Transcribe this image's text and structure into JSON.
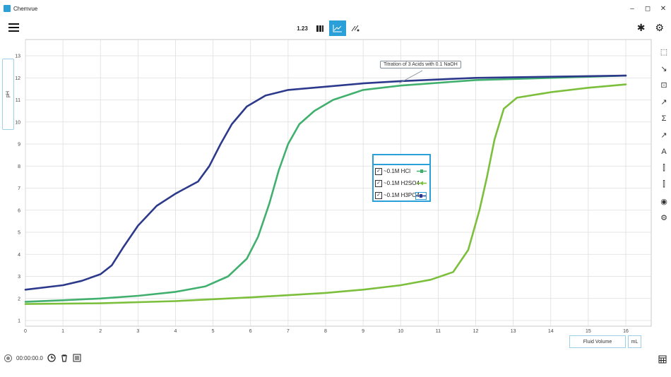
{
  "window": {
    "title": "Chemvue",
    "controls": [
      "–",
      "◻",
      "✕"
    ]
  },
  "toolbar": {
    "table_label": "1.23",
    "meter_icon": "meter-icon",
    "graph_icon": "graph-icon",
    "sensor_icon": "sensor-icon"
  },
  "top_right": {
    "bluetooth": "✱",
    "settings": "⚙"
  },
  "y_axis": {
    "label": "pH"
  },
  "x_axis": {
    "label": "Fluid Volume",
    "unit": "mL"
  },
  "annotation": "Titration of 3 Acids with 0.1 NaOH",
  "legend": [
    {
      "label": "~0.1M HCl",
      "checked": "✓"
    },
    {
      "label": "~0.1M H2SO4",
      "checked": "✓"
    },
    {
      "label": "~0.1M H3PO4",
      "checked": "✓"
    }
  ],
  "side_tools": [
    "⬚",
    "↘",
    "⊡",
    "↗",
    "Σ",
    "↗",
    "A",
    "⫿",
    "⫿",
    "◉",
    "⚙"
  ],
  "bottom": {
    "timer": "00:00:00.0"
  },
  "colors": {
    "hcl": "#41b06e",
    "h2so4": "#7cbf3c",
    "h3po4": "#2d3a8c",
    "accent": "#2a9fd8"
  },
  "chart_data": {
    "type": "line",
    "xlim": [
      0,
      16
    ],
    "ylim": [
      1,
      13
    ],
    "x_ticks": [
      0,
      1,
      2,
      3,
      4,
      5,
      6,
      7,
      8,
      9,
      10,
      11,
      12,
      13,
      14,
      15,
      16
    ],
    "y_ticks": [
      1,
      2,
      3,
      4,
      5,
      6,
      7,
      8,
      9,
      10,
      11,
      12,
      13
    ],
    "grid": true,
    "series": [
      {
        "name": "~0.1M HCl",
        "color": "#41b06e",
        "points": [
          [
            0,
            1.85
          ],
          [
            1,
            1.92
          ],
          [
            2,
            2.0
          ],
          [
            3,
            2.12
          ],
          [
            4,
            2.3
          ],
          [
            4.8,
            2.55
          ],
          [
            5.4,
            3.0
          ],
          [
            5.9,
            3.8
          ],
          [
            6.2,
            4.8
          ],
          [
            6.5,
            6.3
          ],
          [
            6.75,
            7.8
          ],
          [
            7.0,
            9.0
          ],
          [
            7.3,
            9.9
          ],
          [
            7.7,
            10.5
          ],
          [
            8.2,
            11.0
          ],
          [
            9,
            11.45
          ],
          [
            10,
            11.65
          ],
          [
            12,
            11.9
          ],
          [
            14,
            12.0
          ],
          [
            16,
            12.1
          ]
        ]
      },
      {
        "name": "~0.1M H2SO4",
        "color": "#7cbf3c",
        "points": [
          [
            0,
            1.75
          ],
          [
            2,
            1.78
          ],
          [
            4,
            1.88
          ],
          [
            6,
            2.05
          ],
          [
            8,
            2.25
          ],
          [
            9,
            2.4
          ],
          [
            10,
            2.6
          ],
          [
            10.8,
            2.85
          ],
          [
            11.4,
            3.2
          ],
          [
            11.8,
            4.2
          ],
          [
            12.1,
            6.0
          ],
          [
            12.3,
            7.5
          ],
          [
            12.5,
            9.2
          ],
          [
            12.75,
            10.6
          ],
          [
            13.1,
            11.1
          ],
          [
            14,
            11.35
          ],
          [
            15,
            11.55
          ],
          [
            16,
            11.7
          ]
        ]
      },
      {
        "name": "~0.1M H3PO4",
        "color": "#2d3a8c",
        "points": [
          [
            0,
            2.4
          ],
          [
            1,
            2.6
          ],
          [
            1.5,
            2.8
          ],
          [
            2,
            3.1
          ],
          [
            2.3,
            3.5
          ],
          [
            2.6,
            4.3
          ],
          [
            3,
            5.3
          ],
          [
            3.5,
            6.2
          ],
          [
            4,
            6.75
          ],
          [
            4.6,
            7.3
          ],
          [
            4.9,
            8.0
          ],
          [
            5.2,
            9.0
          ],
          [
            5.5,
            9.9
          ],
          [
            5.9,
            10.7
          ],
          [
            6.4,
            11.2
          ],
          [
            7,
            11.45
          ],
          [
            8,
            11.6
          ],
          [
            9,
            11.75
          ],
          [
            10,
            11.85
          ],
          [
            12,
            12.0
          ],
          [
            14,
            12.05
          ],
          [
            16,
            12.1
          ]
        ]
      }
    ]
  }
}
